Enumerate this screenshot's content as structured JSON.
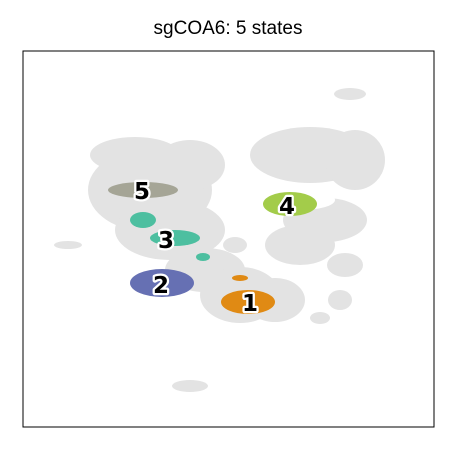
{
  "chart_data": {
    "type": "scatter",
    "title": "sgCOA6: 5 states",
    "xlabel": "",
    "ylabel": "",
    "grid": false,
    "legend": "none",
    "background_color": "#e3e3e3",
    "states": [
      {
        "label": "1",
        "color": "#e08a14"
      },
      {
        "label": "2",
        "color": "#6670b3"
      },
      {
        "label": "3",
        "color": "#4dbfa0"
      },
      {
        "label": "4",
        "color": "#a3cc4a"
      },
      {
        "label": "5",
        "color": "#a5a596"
      }
    ]
  }
}
